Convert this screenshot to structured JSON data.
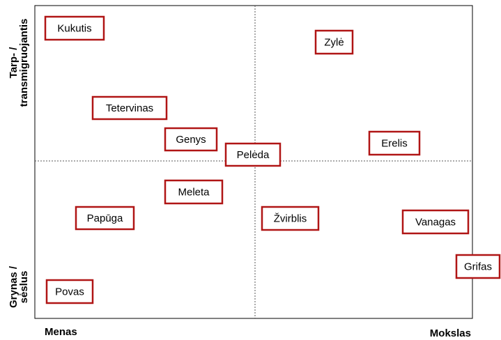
{
  "axes": {
    "y_top": [
      "Tarp- /",
      "transmigruojantis"
    ],
    "y_bottom": [
      "Grynas /",
      "sėslus"
    ],
    "x_left": "Menas",
    "x_right": "Mokslas"
  },
  "nodes": [
    {
      "label": "Kukutis"
    },
    {
      "label": "Zylė"
    },
    {
      "label": "Tetervinas"
    },
    {
      "label": "Genys"
    },
    {
      "label": "Pelėda"
    },
    {
      "label": "Erelis"
    },
    {
      "label": "Meleta"
    },
    {
      "label": "Papūga"
    },
    {
      "label": "Žvirblis"
    },
    {
      "label": "Vanagas"
    },
    {
      "label": "Grifas"
    },
    {
      "label": "Povas"
    }
  ]
}
